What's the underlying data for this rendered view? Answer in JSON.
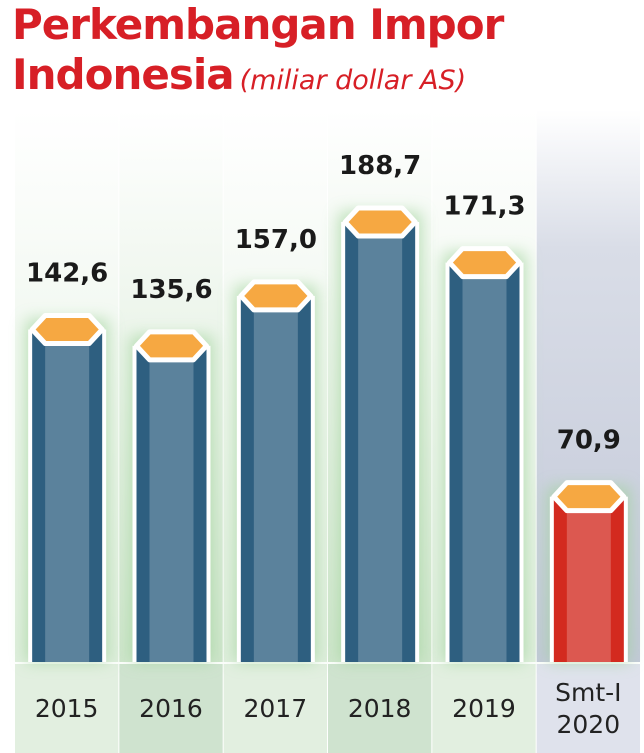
{
  "chart_data": {
    "type": "bar",
    "title": "Perkembangan Impor Indonesia",
    "subtitle": "(miliar dollar AS)",
    "categories": [
      "2015",
      "2016",
      "2017",
      "2018",
      "2019",
      "Smt-I 2020"
    ],
    "values": [
      142.6,
      135.6,
      157.0,
      188.7,
      171.3,
      70.9
    ],
    "value_labels": [
      "142,6",
      "135,6",
      "157,0",
      "188,7",
      "171,3",
      "70,9"
    ],
    "colors": [
      "#2e5f80",
      "#2e5f80",
      "#2e5f80",
      "#2e5f80",
      "#2e5f80",
      "#d32a1f"
    ]
  }
}
